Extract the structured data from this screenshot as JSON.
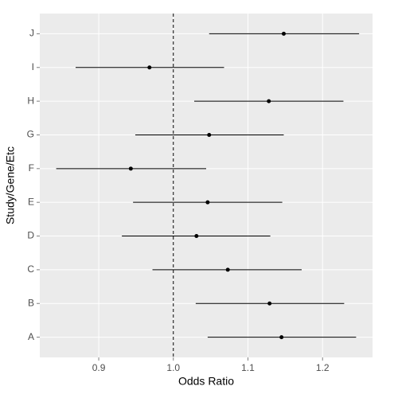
{
  "chart_data": {
    "type": "forest",
    "x_label": "Odds Ratio",
    "y_label": "Study/Gene/Etc",
    "categories": [
      "A",
      "B",
      "C",
      "D",
      "E",
      "F",
      "G",
      "H",
      "I",
      "J"
    ],
    "values": [
      1.145,
      1.129,
      1.073,
      1.031,
      1.046,
      0.943,
      1.048,
      1.128,
      0.968,
      1.148
    ],
    "lower": [
      1.046,
      1.03,
      0.972,
      0.931,
      0.946,
      0.843,
      0.949,
      1.028,
      0.869,
      1.048
    ],
    "upper": [
      1.245,
      1.229,
      1.172,
      1.13,
      1.146,
      1.044,
      1.148,
      1.228,
      1.068,
      1.249
    ],
    "color": "#000000",
    "reference_line": 1,
    "xlim": [
      0.821,
      1.267
    ],
    "xticks": [
      0.9,
      {
        "value": 1,
        "label": "1.0"
      },
      1.1,
      1.2
    ],
    "grid": true
  }
}
